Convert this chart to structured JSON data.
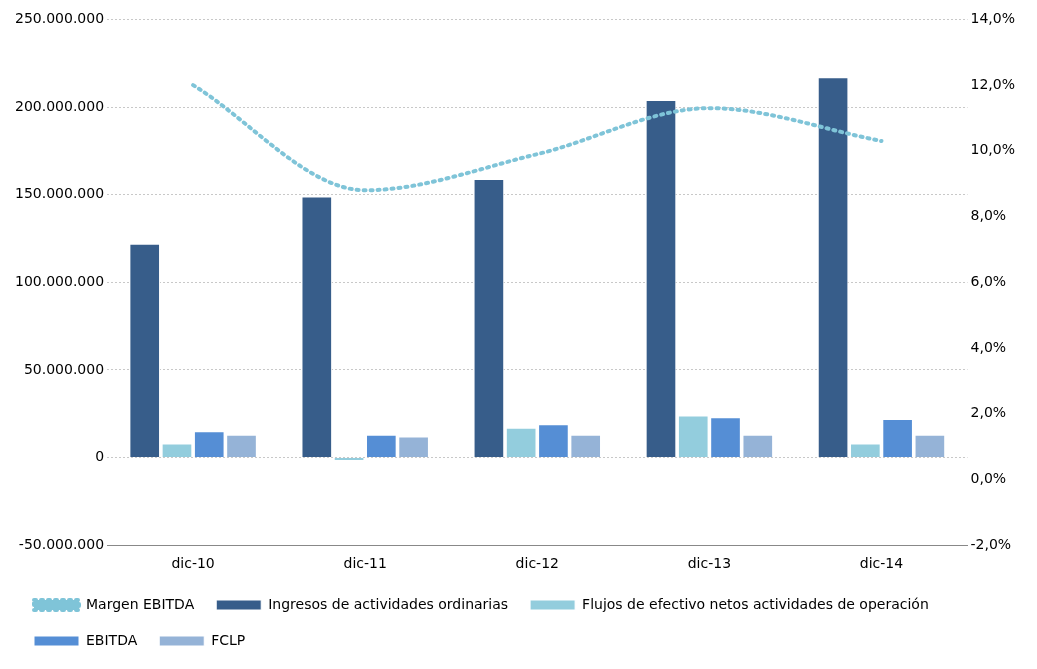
{
  "chart_data": {
    "type": "bar",
    "categories": [
      "dic-10",
      "dic-11",
      "dic-12",
      "dic-13",
      "dic-14"
    ],
    "series": [
      {
        "name": "Ingresos de actividades ordinarias",
        "color": "#375d8a",
        "values": [
          122000000,
          149000000,
          159000000,
          204000000,
          217000000
        ]
      },
      {
        "name": "Flujos de efectivo netos actividades de operación",
        "color": "#93cddd",
        "values": [
          8000000,
          -2000000,
          17000000,
          24000000,
          8000000
        ]
      },
      {
        "name": "EBITDA",
        "color": "#558ed5",
        "values": [
          15000000,
          13000000,
          19000000,
          23000000,
          22000000
        ]
      },
      {
        "name": "FCLP",
        "color": "#95b3d7",
        "values": [
          13000000,
          12000000,
          13000000,
          13000000,
          13000000
        ]
      },
      {
        "name": "Margen EBITDA",
        "type": "line",
        "axis": "y2",
        "color": "#7fc4d8",
        "line_style": "dotted",
        "marker": "none",
        "values": [
          12.0,
          8.8,
          9.9,
          11.3,
          10.3
        ]
      }
    ],
    "ylim": [
      -50000000,
      250000000
    ],
    "yticks": [
      {
        "value": -50000000,
        "label": "-50.000.000"
      },
      0,
      {
        "value": 50000000,
        "label": "50.000.000"
      },
      {
        "value": 100000000,
        "label": "100.000.000"
      },
      {
        "value": 150000000,
        "label": "150.000.000"
      },
      {
        "value": 200000000,
        "label": "200.000.000"
      },
      {
        "value": 250000000,
        "label": "250.000.000"
      }
    ],
    "y2lim": [
      -2,
      14
    ],
    "y2ticks": [
      {
        "value": -2,
        "label": "-2,0%"
      },
      {
        "value": 0,
        "label": "0,0%"
      },
      {
        "value": 2,
        "label": "2,0%"
      },
      {
        "value": 4,
        "label": "4,0%"
      },
      {
        "value": 6,
        "label": "6,0%"
      },
      {
        "value": 8,
        "label": "8,0%"
      },
      {
        "value": 10,
        "label": "10,0%"
      },
      {
        "value": 12,
        "label": "12,0%"
      },
      {
        "value": 14,
        "label": "14,0%"
      }
    ],
    "grid": "y",
    "legend": "bottom"
  }
}
